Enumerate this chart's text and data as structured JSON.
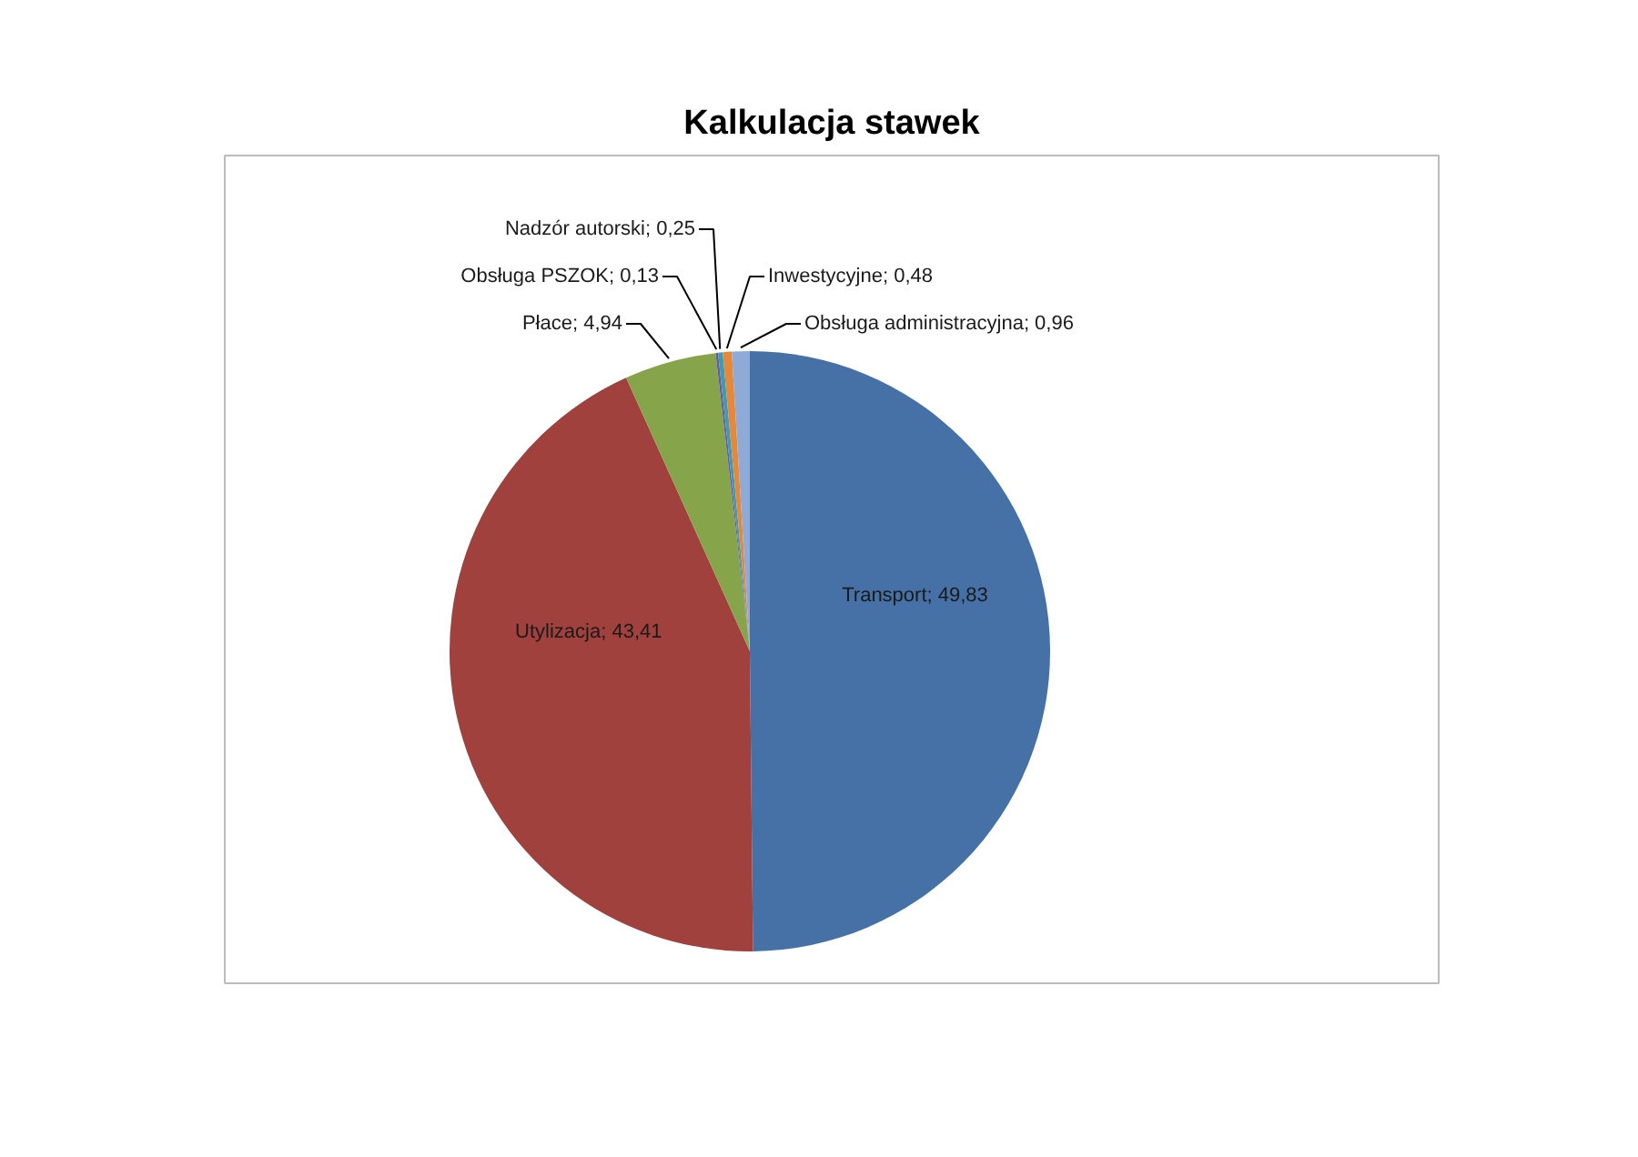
{
  "chart_data": {
    "type": "pie",
    "title": "Kalkulacja stawek",
    "categories": [
      "Transport",
      "Utylizacja",
      "Płace",
      "Obsługa PSZOK",
      "Nadzór autorski",
      "Inwestycyjne",
      "Obsługa administracyjna"
    ],
    "values": [
      49.83,
      43.41,
      4.94,
      0.13,
      0.25,
      0.48,
      0.96
    ],
    "value_labels": [
      "49,83",
      "43,41",
      "4,94",
      "0,13",
      "0,25",
      "0,48",
      "0,96"
    ],
    "colors": [
      "#4671a6",
      "#a0413e",
      "#86a44a",
      "#6a5a9a",
      "#3d9bb3",
      "#e6883a",
      "#8eaad6"
    ]
  }
}
